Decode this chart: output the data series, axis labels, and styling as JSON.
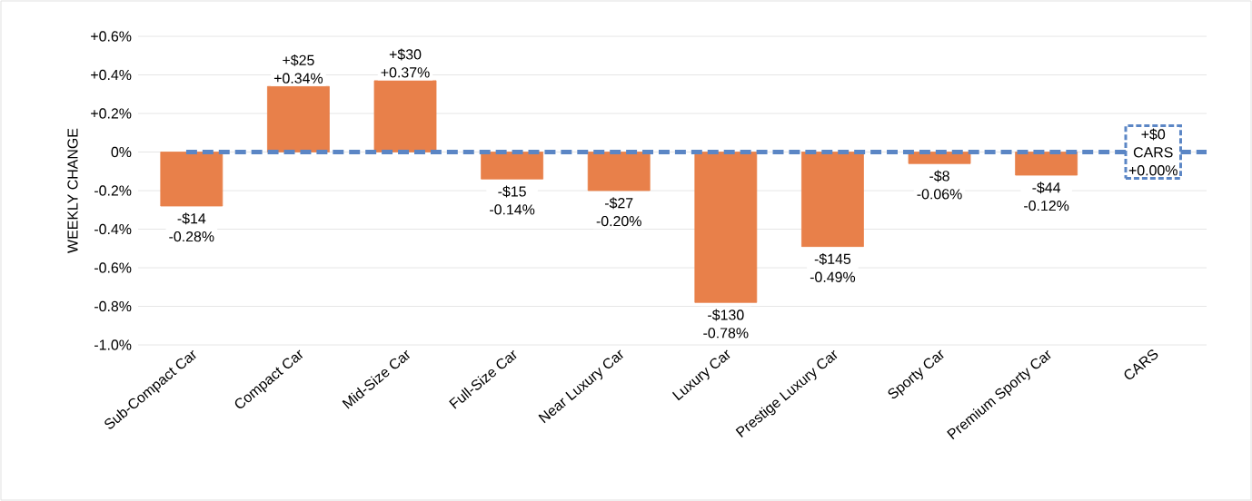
{
  "chart_data": {
    "type": "bar",
    "ylabel": "WEEKLY CHANGE",
    "categories": [
      "Sub-Compact Car",
      "Compact Car",
      "Mid-Size Car",
      "Full-Size Car",
      "Near Luxury Car",
      "Luxury Car",
      "Prestige Luxury Car",
      "Sporty Car",
      "Premium Sporty Car",
      "CARS"
    ],
    "values": [
      -0.28,
      0.34,
      0.37,
      -0.14,
      -0.2,
      -0.78,
      -0.49,
      -0.06,
      -0.12,
      0
    ],
    "value_labels": [
      "-0.28%",
      "+0.34%",
      "+0.37%",
      "-0.14%",
      "-0.20%",
      "-0.78%",
      "-0.49%",
      "-0.06%",
      "-0.12%",
      "+0.00%"
    ],
    "color": "#e8804a",
    "ylim": [
      -1.0,
      0.6
    ],
    "yticks": [
      {
        "value": -1.0,
        "label": "-1.0%"
      },
      {
        "value": -0.8,
        "label": "-0.8%"
      },
      {
        "value": -0.6,
        "label": "-0.6%"
      },
      {
        "value": -0.4,
        "label": "-0.4%"
      },
      {
        "value": -0.2,
        "label": "-0.2%"
      },
      {
        "value": 0,
        "label": "0%"
      },
      {
        "value": 0.2,
        "label": "+0.2%"
      },
      {
        "value": 0.4,
        "label": "+0.4%"
      },
      {
        "value": 0.6,
        "label": "+0.6%"
      }
    ],
    "grid": "y",
    "ref_lines": [
      {
        "axis": "y",
        "value": 0,
        "color": "#5b86c5",
        "line_style": "dashed"
      }
    ],
    "annotations": [
      {
        "text": "-$14",
        "x": "Sub-Compact Car",
        "y": -0.28
      },
      {
        "text": "+$25",
        "x": "Compact Car",
        "y": 0.34
      },
      {
        "text": "+$30",
        "x": "Mid-Size Car",
        "y": 0.37
      },
      {
        "text": "-$15",
        "x": "Full-Size Car",
        "y": -0.14
      },
      {
        "text": "-$27",
        "x": "Near Luxury Car",
        "y": -0.2
      },
      {
        "text": "-$130",
        "x": "Luxury Car",
        "y": -0.78
      },
      {
        "text": "-$145",
        "x": "Prestige Luxury Car",
        "y": -0.49
      },
      {
        "text": "-$8",
        "x": "Sporty Car",
        "y": -0.06
      },
      {
        "text": "-$44",
        "x": "Premium Sporty Car",
        "y": -0.12
      },
      {
        "text": "+$0",
        "x": "CARS",
        "y": 0
      },
      {
        "text": "CARS",
        "x": "CARS",
        "y": 0
      }
    ]
  }
}
